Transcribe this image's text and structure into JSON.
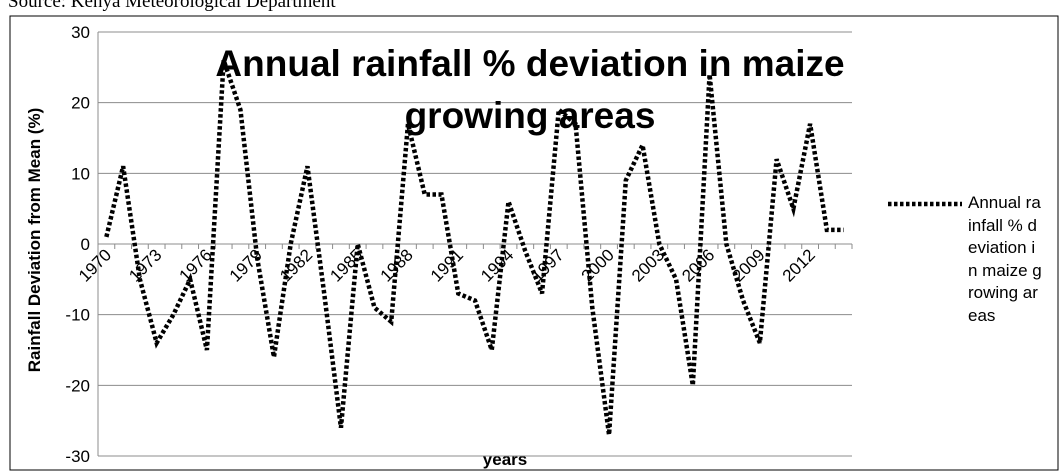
{
  "source": "Source: Kenya Meteorological Department",
  "chart_data": {
    "type": "line",
    "title": "Annual rainfall % deviation in maize growing areas",
    "x_label": "years",
    "y_label": "Rainfall Deviation from Mean (%)",
    "categories": [
      "1970",
      null,
      null,
      "1973",
      null,
      null,
      "1976",
      null,
      null,
      "1979",
      null,
      null,
      "1982",
      null,
      null,
      "1985",
      null,
      null,
      "1988",
      null,
      null,
      "1991",
      null,
      null,
      "1994",
      null,
      null,
      "1997",
      null,
      null,
      "2000",
      null,
      null,
      "2003",
      null,
      null,
      "2006",
      null,
      null,
      "2009",
      null,
      null,
      "2012",
      null,
      null
    ],
    "series": [
      {
        "name": "Annual rainfall % deviation in maize growing areas",
        "color": "#000000",
        "values": [
          1,
          11,
          -5,
          -14,
          -10,
          -5,
          -15,
          26,
          19,
          -2,
          -16,
          0,
          11,
          -7,
          -26,
          0,
          -9,
          -11,
          17,
          7,
          7,
          -7,
          -8,
          -15,
          6,
          -1,
          -7,
          19,
          17,
          -9,
          -27,
          9,
          14,
          0,
          -5,
          -20,
          24,
          0,
          -8,
          -14,
          12,
          5,
          17,
          2,
          2
        ]
      }
    ],
    "ylim": [
      -30,
      30
    ],
    "yticks": [
      -30,
      -20,
      -10,
      0,
      10,
      20,
      30
    ],
    "grid": true,
    "legend": "right"
  }
}
